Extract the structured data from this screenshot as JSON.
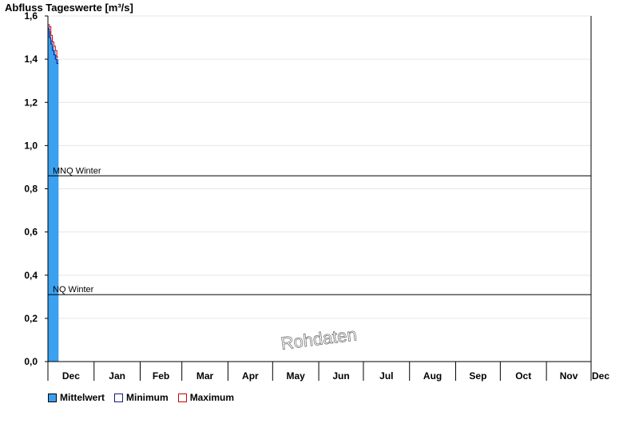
{
  "chart_data": {
    "type": "bar",
    "title": "Abfluss Tageswerte [m³/s]",
    "xlabel": "",
    "ylabel": "",
    "ylim": [
      0,
      1.6
    ],
    "yticks": [
      {
        "value": 0.0,
        "label": "0,0"
      },
      {
        "value": 0.2,
        "label": "0,2"
      },
      {
        "value": 0.4,
        "label": "0,4"
      },
      {
        "value": 0.6,
        "label": "0,6"
      },
      {
        "value": 0.8,
        "label": "0,8"
      },
      {
        "value": 1.0,
        "label": "1,0"
      },
      {
        "value": 1.2,
        "label": "1,2"
      },
      {
        "value": 1.4,
        "label": "1,4"
      },
      {
        "value": 1.6,
        "label": "1,6"
      }
    ],
    "months": [
      "Dec",
      "Jan",
      "Feb",
      "Mar",
      "Apr",
      "May",
      "Jun",
      "Jul",
      "Aug",
      "Sep",
      "Oct",
      "Nov",
      "Dec"
    ],
    "month_lengths": [
      31,
      31,
      28,
      31,
      30,
      31,
      30,
      31,
      31,
      30,
      31,
      30
    ],
    "series": [
      {
        "name": "Mittelwert",
        "color": "#3aa0f0",
        "values": [
          1.55,
          1.53,
          1.49,
          1.46,
          1.44,
          1.42,
          1.4
        ]
      },
      {
        "name": "Minimum",
        "color": "#1a1a80",
        "values": [
          1.54,
          1.5,
          1.47,
          1.44,
          1.42,
          1.4,
          1.38
        ]
      },
      {
        "name": "Maximum",
        "color": "#cc0000",
        "values": [
          1.56,
          1.55,
          1.51,
          1.48,
          1.46,
          1.44,
          1.41
        ]
      }
    ],
    "reference_lines": [
      {
        "label": "MNQ Winter",
        "value": 0.86
      },
      {
        "label": "NQ Winter",
        "value": 0.31
      }
    ],
    "grid": true,
    "legend_position": "bottom-left",
    "watermark": "Rohdaten"
  }
}
